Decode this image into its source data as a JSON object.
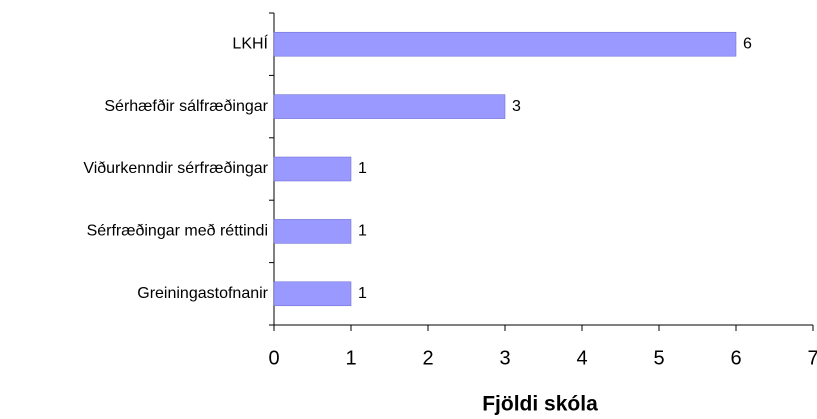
{
  "chart_data": {
    "type": "barh",
    "x_label": "Fjöldi skóla",
    "categories": [
      "LKHÍ",
      "Sérhæfðir sálfræðingar",
      "Viðurkenndir sérfræðingar",
      "Sérfræðingar með réttindi",
      "Greiningastofnanir"
    ],
    "values": [
      6,
      3,
      1,
      1,
      1
    ],
    "color": "#9999ff",
    "xlim": [
      0,
      7
    ],
    "xticks": [
      0,
      1,
      2,
      3,
      4,
      5,
      6,
      7
    ],
    "grid": false
  }
}
